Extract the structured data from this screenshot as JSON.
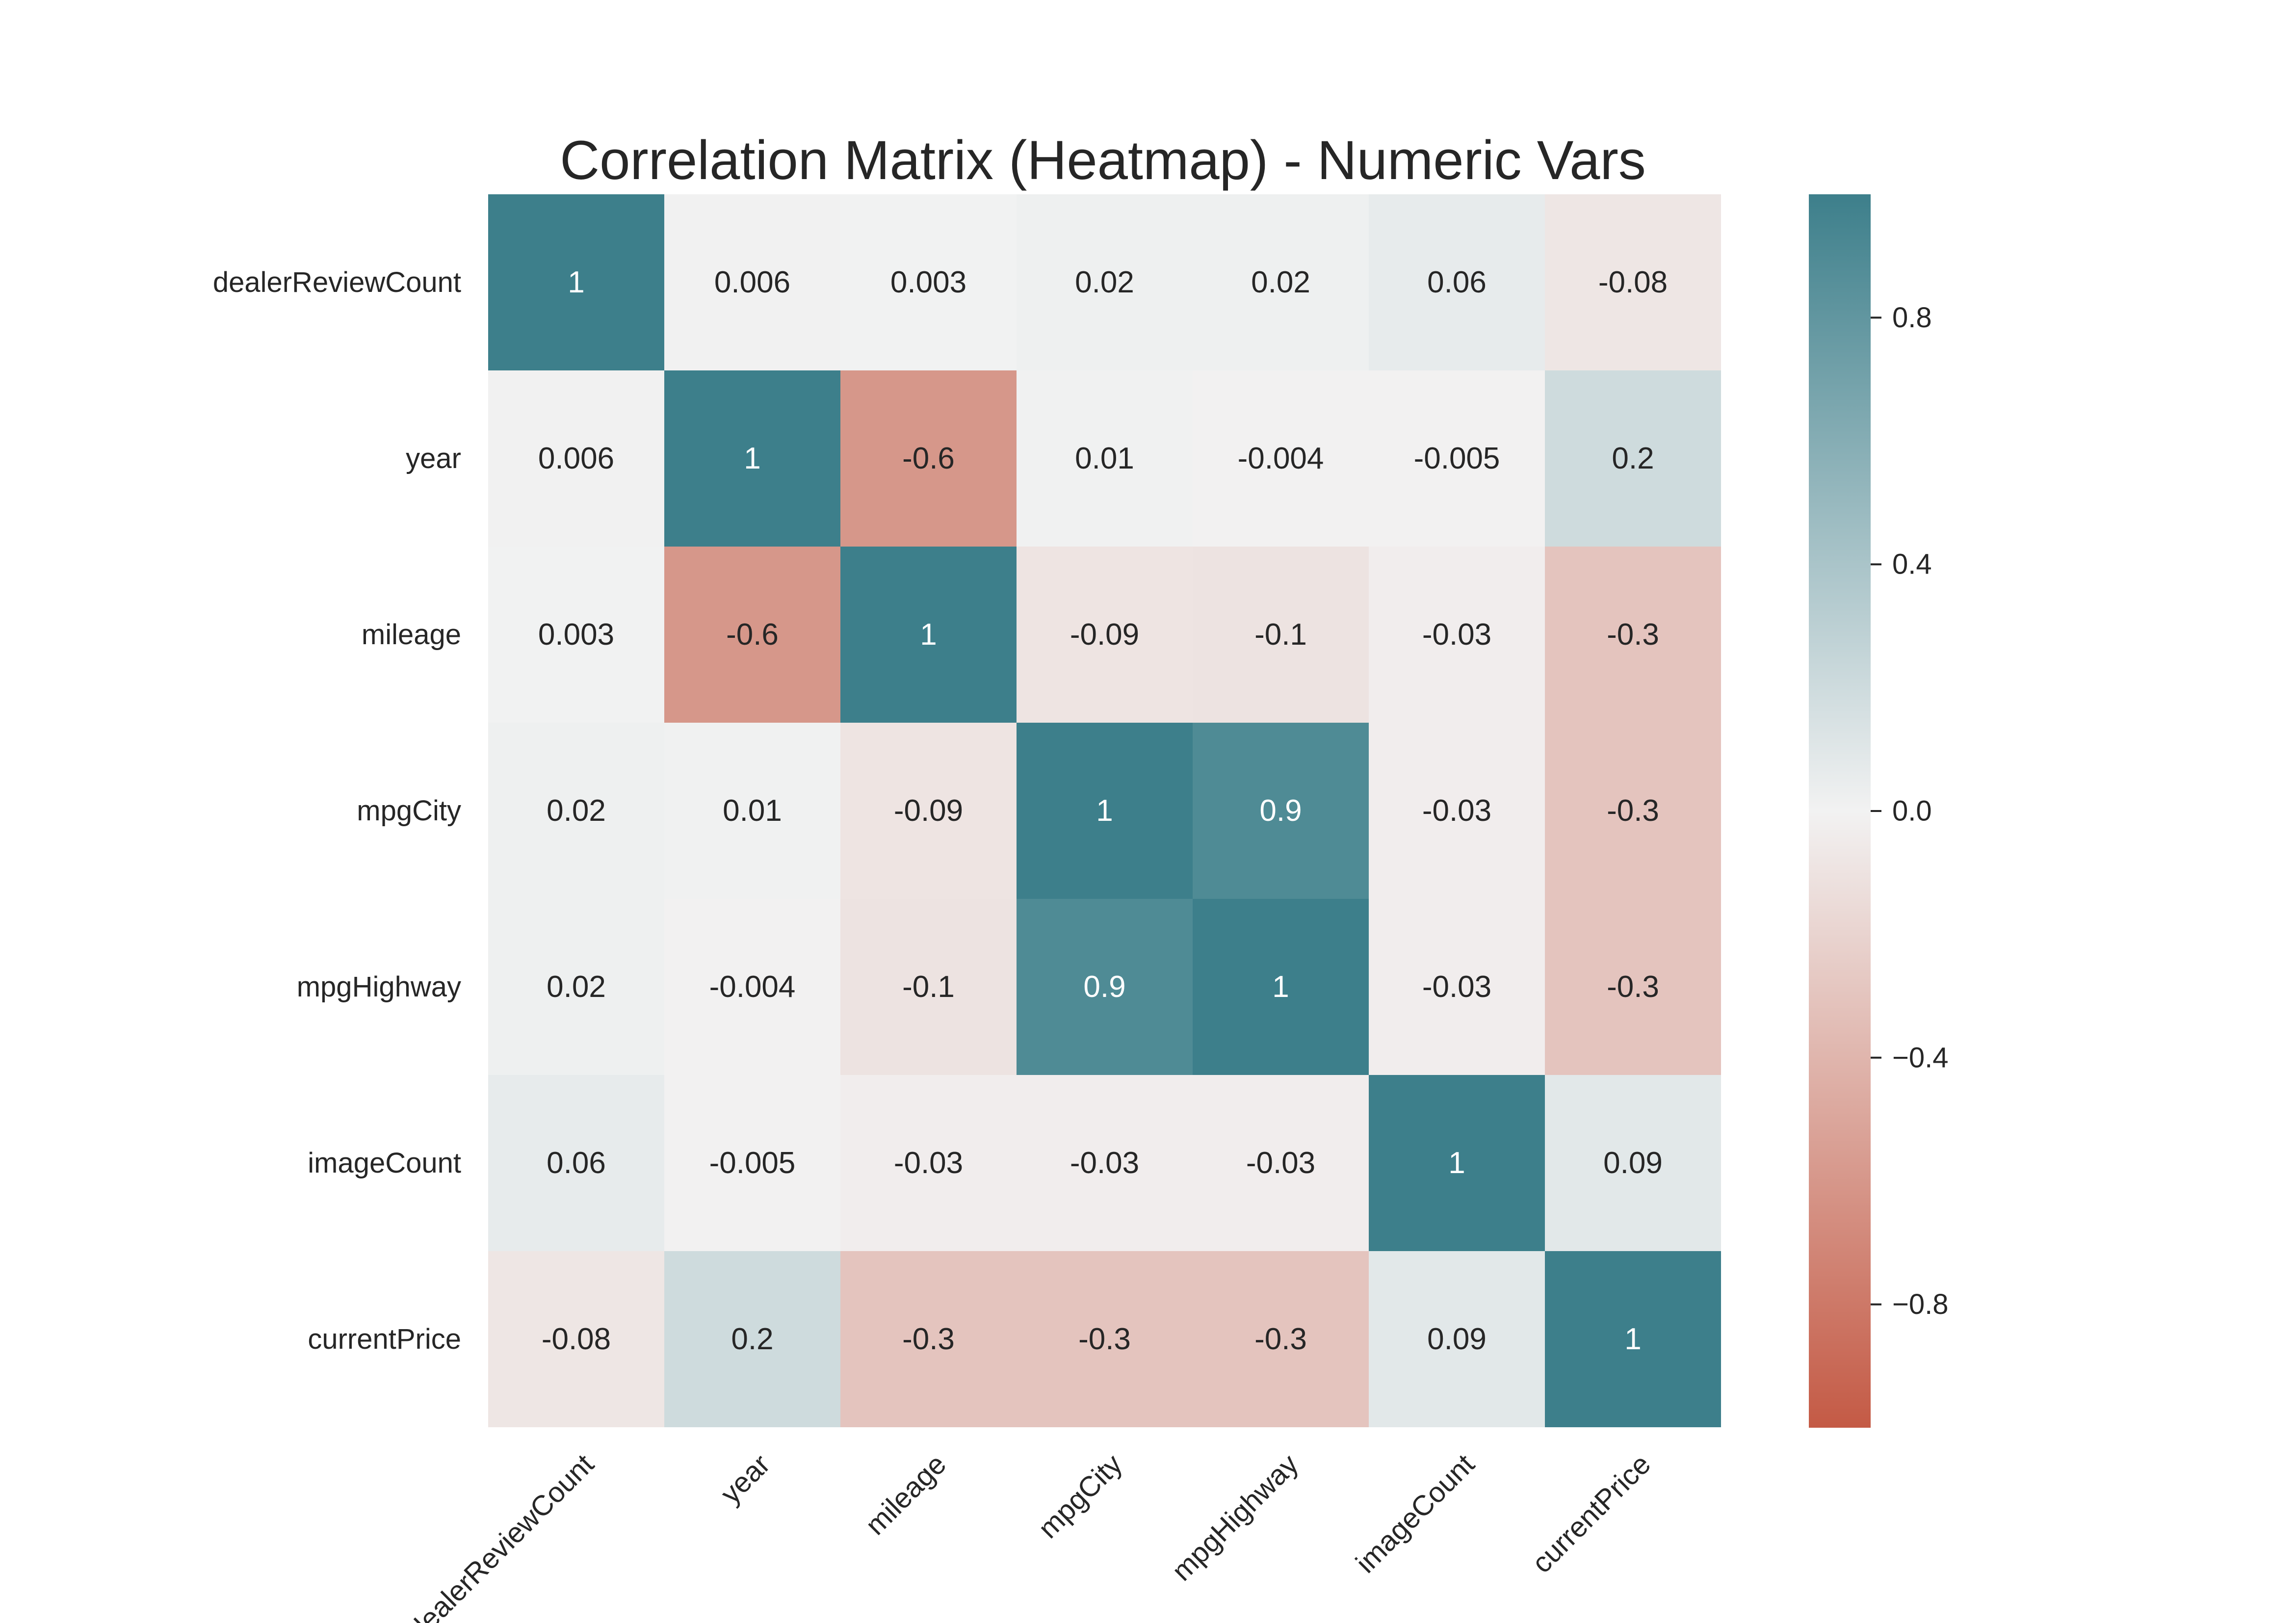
{
  "chart_data": {
    "type": "heatmap",
    "title": "Correlation Matrix (Heatmap) - Numeric Vars",
    "row_labels": [
      "dealerReviewCount",
      "year",
      "mileage",
      "mpgCity",
      "mpgHighway",
      "imageCount",
      "currentPrice"
    ],
    "col_labels": [
      "dealerReviewCount",
      "year",
      "mileage",
      "mpgCity",
      "mpgHighway",
      "imageCount",
      "currentPrice"
    ],
    "values": [
      [
        1,
        0.006,
        0.003,
        0.02,
        0.02,
        0.06,
        -0.08
      ],
      [
        0.006,
        1,
        -0.6,
        0.01,
        -0.004,
        -0.005,
        0.2
      ],
      [
        0.003,
        -0.6,
        1,
        -0.09,
        -0.1,
        -0.03,
        -0.3
      ],
      [
        0.02,
        0.01,
        -0.09,
        1,
        0.9,
        -0.03,
        -0.3
      ],
      [
        0.02,
        -0.004,
        -0.1,
        0.9,
        1,
        -0.03,
        -0.3
      ],
      [
        0.06,
        -0.005,
        -0.03,
        -0.03,
        -0.03,
        1,
        0.09
      ],
      [
        -0.08,
        0.2,
        -0.3,
        -0.3,
        -0.3,
        0.09,
        1
      ]
    ],
    "annotations": [
      [
        "1",
        "0.006",
        "0.003",
        "0.02",
        "0.02",
        "0.06",
        "-0.08"
      ],
      [
        "0.006",
        "1",
        "-0.6",
        "0.01",
        "-0.004",
        "-0.005",
        "0.2"
      ],
      [
        "0.003",
        "-0.6",
        "1",
        "-0.09",
        "-0.1",
        "-0.03",
        "-0.3"
      ],
      [
        "0.02",
        "0.01",
        "-0.09",
        "1",
        "0.9",
        "-0.03",
        "-0.3"
      ],
      [
        "0.02",
        "-0.004",
        "-0.1",
        "0.9",
        "1",
        "-0.03",
        "-0.3"
      ],
      [
        "0.06",
        "-0.005",
        "-0.03",
        "-0.03",
        "-0.03",
        "1",
        "0.09"
      ],
      [
        "-0.08",
        "0.2",
        "-0.3",
        "-0.3",
        "-0.3",
        "0.09",
        "1"
      ]
    ],
    "color_range": [
      -1,
      1
    ],
    "colormap": {
      "negative_end": "#c45a45",
      "center": "#f2f2f2",
      "positive_end": "#3d7f8b"
    },
    "colorbar": {
      "ticks": [
        0.8,
        0.4,
        0.0,
        -0.4,
        -0.8
      ],
      "tick_labels": [
        "0.8",
        "0.4",
        "0.0",
        "−0.4",
        "−0.8"
      ]
    },
    "grid": false
  }
}
